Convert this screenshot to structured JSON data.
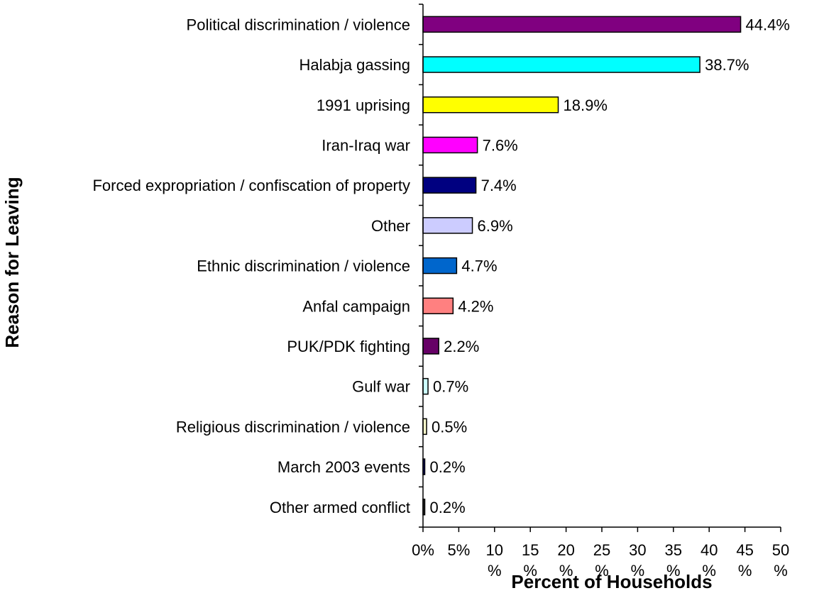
{
  "chart_data": {
    "type": "bar",
    "orientation": "horizontal",
    "xlabel": "Percent of Households",
    "ylabel": "Reason for Leaving",
    "xlim": [
      0,
      50
    ],
    "xticks": [
      {
        "value": 0,
        "line1": "0%",
        "line2": ""
      },
      {
        "value": 5,
        "line1": "5%",
        "line2": ""
      },
      {
        "value": 10,
        "line1": "10",
        "line2": "%"
      },
      {
        "value": 15,
        "line1": "15",
        "line2": "%"
      },
      {
        "value": 20,
        "line1": "20",
        "line2": "%"
      },
      {
        "value": 25,
        "line1": "25",
        "line2": "%"
      },
      {
        "value": 30,
        "line1": "30",
        "line2": "%"
      },
      {
        "value": 35,
        "line1": "35",
        "line2": "%"
      },
      {
        "value": 40,
        "line1": "40",
        "line2": "%"
      },
      {
        "value": 45,
        "line1": "45",
        "line2": "%"
      },
      {
        "value": 50,
        "line1": "50",
        "line2": "%"
      }
    ],
    "grid": false,
    "legend": "none",
    "categories": [
      "Political discrimination / violence",
      "Halabja gassing",
      "1991 uprising",
      "Iran-Iraq war",
      "Forced expropriation / confiscation of property",
      "Other",
      "Ethnic discrimination / violence",
      "Anfal campaign",
      "PUK/PDK fighting",
      "Gulf war",
      "Religious discrimination / violence",
      "March 2003 events",
      "Other armed conflict"
    ],
    "values": [
      44.4,
      38.7,
      18.9,
      7.6,
      7.4,
      6.9,
      4.7,
      4.2,
      2.2,
      0.7,
      0.5,
      0.2,
      0.2
    ],
    "data_labels": [
      "44.4%",
      "38.7%",
      "18.9%",
      "7.6%",
      "7.4%",
      "6.9%",
      "4.7%",
      "4.2%",
      "2.2%",
      "0.7%",
      "0.5%",
      "0.2%",
      "0.2%"
    ],
    "colors": [
      "#800080",
      "#00FFFF",
      "#FFFF00",
      "#FF00FF",
      "#000080",
      "#CCCCFF",
      "#0066CC",
      "#FF8080",
      "#660066",
      "#CCFFFF",
      "#FFFFCC",
      "#000080",
      "#333333"
    ]
  }
}
